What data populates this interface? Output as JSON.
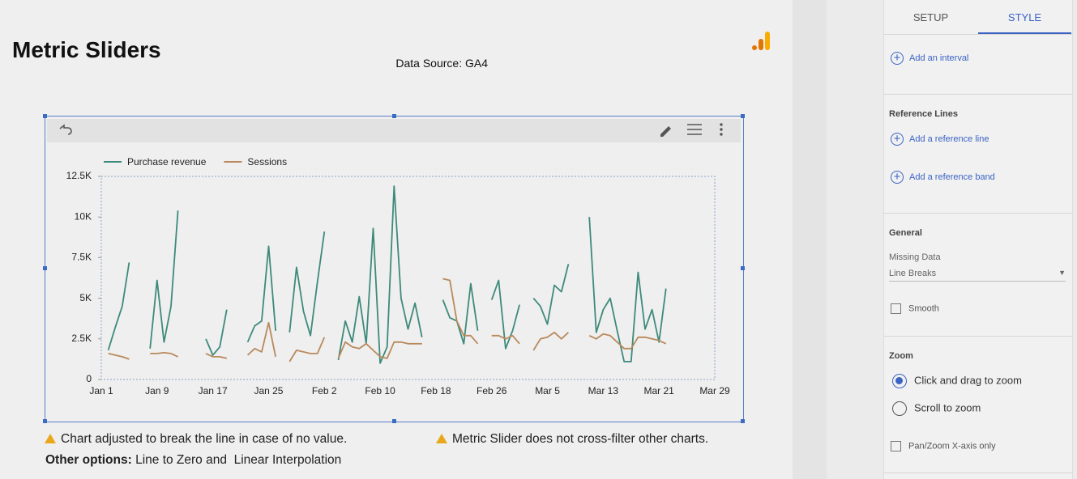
{
  "header": {
    "title": "Metric Sliders",
    "data_source": "Data Source: GA4"
  },
  "chart_data": {
    "type": "line",
    "categories": [
      "Jan 1",
      null,
      null,
      null,
      null,
      null,
      null,
      null,
      "Jan 9",
      null,
      null,
      null,
      null,
      null,
      null,
      null,
      "Jan 17",
      null,
      null,
      null,
      null,
      null,
      null,
      null,
      "Jan 25",
      null,
      null,
      null,
      null,
      null,
      null,
      null,
      "Feb 2",
      null,
      null,
      null,
      null,
      null,
      null,
      null,
      "Feb 10",
      null,
      null,
      null,
      null,
      null,
      null,
      null,
      "Feb 18",
      null,
      null,
      null,
      null,
      null,
      null,
      null,
      "Feb 26",
      null,
      null,
      null,
      null,
      null,
      null,
      null,
      "Mar 5",
      null,
      null,
      null,
      null,
      null,
      null,
      null,
      "Mar 13",
      null,
      null,
      null,
      null,
      null,
      null,
      null,
      "Mar 21",
      null,
      null,
      null,
      null,
      null,
      null,
      null,
      "Mar 29"
    ],
    "series": [
      {
        "name": "Purchase revenue",
        "color": "#3d8a7b",
        "values": [
          null,
          1800,
          3200,
          4500,
          7200,
          null,
          null,
          1900,
          6100,
          2300,
          4500,
          10400,
          null,
          null,
          null,
          2500,
          1500,
          2000,
          4300,
          null,
          null,
          2300,
          3300,
          3600,
          8200,
          3000,
          null,
          2900,
          6900,
          4200,
          2700,
          6000,
          9100,
          null,
          1200,
          3600,
          2300,
          5100,
          2200,
          9300,
          1000,
          2000,
          11900,
          5000,
          3100,
          4700,
          2600,
          null,
          null,
          4900,
          3800,
          3600,
          2200,
          5900,
          3000,
          null,
          4900,
          6100,
          1900,
          3000,
          4600,
          null,
          5000,
          4500,
          3400,
          5800,
          5400,
          7100,
          null,
          null,
          10000,
          2900,
          4300,
          5000,
          3000,
          1100,
          1100,
          6600,
          3100,
          4300,
          2300,
          5600,
          null,
          null,
          null,
          null,
          null,
          null,
          null
        ]
      },
      {
        "name": "Sessions",
        "color": "#b9895c",
        "values": [
          null,
          1600,
          1500,
          1400,
          1250,
          null,
          null,
          1600,
          1600,
          1650,
          1600,
          1400,
          null,
          null,
          null,
          1600,
          1400,
          1400,
          1300,
          null,
          null,
          1500,
          1900,
          1700,
          3500,
          1400,
          null,
          1100,
          1800,
          1700,
          1600,
          1600,
          2600,
          null,
          1300,
          2300,
          2000,
          1900,
          2200,
          1800,
          1400,
          1300,
          2300,
          2300,
          2200,
          2200,
          2200,
          null,
          null,
          6200,
          6100,
          3600,
          2700,
          2700,
          2200,
          null,
          2700,
          2700,
          2500,
          2700,
          2200,
          null,
          1800,
          2500,
          2600,
          2900,
          2500,
          2900,
          null,
          null,
          2700,
          2500,
          2800,
          2700,
          2300,
          1900,
          1900,
          2600,
          2600,
          2500,
          2400,
          2200,
          null,
          null,
          null,
          null,
          null,
          null,
          null
        ]
      }
    ],
    "ylim": [
      0,
      12500
    ],
    "yticks": [
      0,
      {
        "value": 2500,
        "label": "2.5K"
      },
      {
        "value": 5000,
        "label": "5K"
      },
      {
        "value": 7500,
        "label": "7.5K"
      },
      {
        "value": 10000,
        "label": "10K"
      },
      {
        "value": 12500,
        "label": "12.5K"
      }
    ],
    "grid": false,
    "legend": "top"
  },
  "notes": {
    "break_note": "Chart adjusted to break the line in case of no value.",
    "filter_note": "Metric Slider does not cross-filter other charts.",
    "options_label": "Other options:",
    "options_text": " Line to Zero and  Linear Interpolation"
  },
  "panel": {
    "tabs": [
      "SETUP",
      "STYLE"
    ],
    "add_interval": "Add an interval",
    "reference_lines": {
      "heading": "Reference Lines",
      "add_line": "Add a reference line",
      "add_band": "Add a reference band"
    },
    "general": {
      "heading": "General",
      "missing_data_label": "Missing Data",
      "missing_data_value": "Line Breaks",
      "smooth": "Smooth"
    },
    "zoom": {
      "heading": "Zoom",
      "options": [
        "Click and drag to zoom",
        "Scroll to zoom"
      ],
      "pan": "Pan/Zoom X-axis only"
    }
  }
}
